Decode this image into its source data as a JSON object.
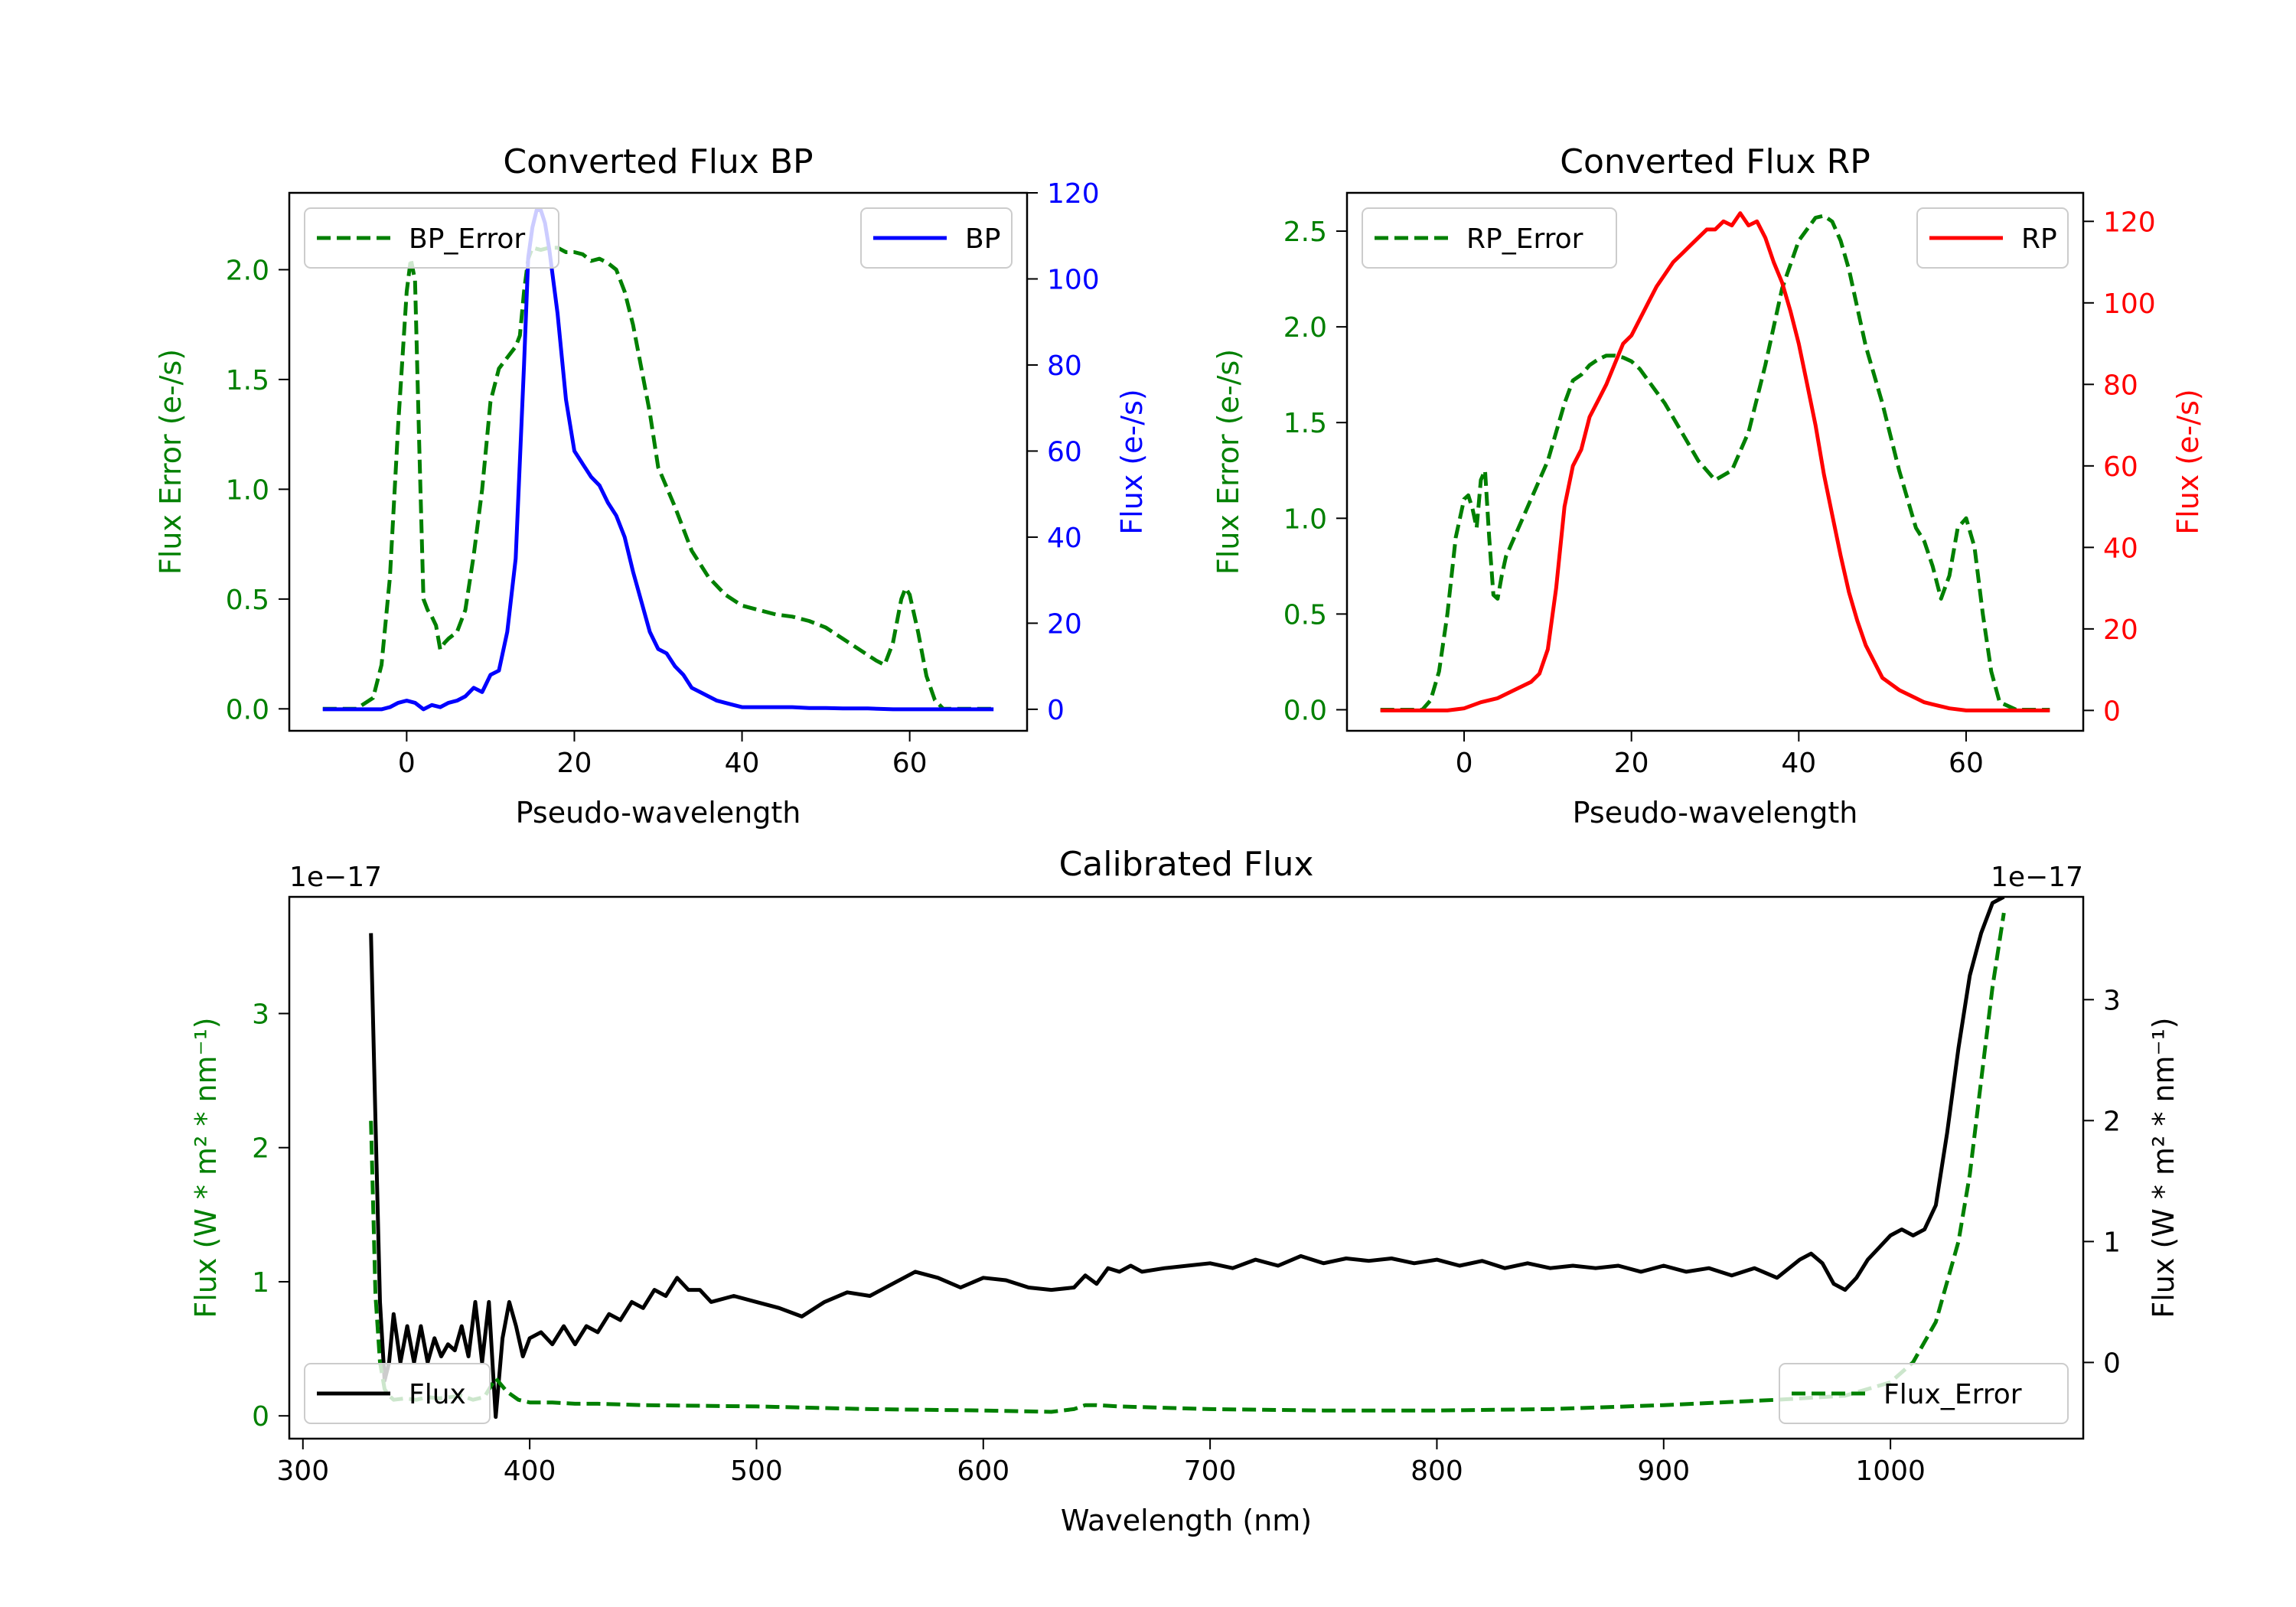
{
  "chart_data": [
    {
      "type": "line",
      "id": "bp",
      "title": "Converted Flux BP",
      "xlabel": "Pseudo-wavelength",
      "ylabel": "Flux Error (e-/s)",
      "ylabel_right": "Flux (e-/s)",
      "xlim": [
        -14,
        74
      ],
      "ylim": [
        -0.1,
        2.35
      ],
      "ylim_right": [
        -5,
        120
      ],
      "xticks": [
        0,
        20,
        40,
        60
      ],
      "yticks": [
        0.0,
        0.5,
        1.0,
        1.5,
        2.0
      ],
      "yticks_right": [
        0,
        20,
        40,
        60,
        80,
        100,
        120
      ],
      "colors": {
        "error": "#008000",
        "flux": "#0000ff",
        "left_axis": "#008000",
        "right_axis": "#0000ff"
      },
      "legend": {
        "error_label": "BP_Error",
        "flux_label": "BP",
        "error_position": "upper-left",
        "flux_position": "upper-right"
      },
      "series": [
        {
          "name": "BP_Error",
          "axis": "left",
          "style": "dashed",
          "x": [
            -10,
            -6,
            -4,
            -3,
            -2,
            -1,
            0,
            0.5,
            1,
            1.5,
            2,
            2.5,
            3,
            3.5,
            4,
            4.5,
            5,
            6,
            7,
            8,
            9,
            10,
            11,
            12,
            13,
            13.5,
            14,
            14.5,
            15,
            16,
            17,
            18,
            19,
            20,
            21,
            22,
            23,
            24,
            25,
            26,
            27,
            28,
            29,
            30,
            32,
            34,
            36,
            38,
            40,
            42,
            44,
            46,
            48,
            50,
            52,
            54,
            56,
            57,
            58,
            59,
            59.5,
            60,
            61,
            62,
            63,
            64,
            65,
            66,
            68,
            70
          ],
          "values": [
            0.0,
            0.0,
            0.05,
            0.2,
            0.6,
            1.3,
            1.9,
            2.05,
            1.95,
            1.2,
            0.5,
            0.45,
            0.42,
            0.38,
            0.27,
            0.3,
            0.32,
            0.35,
            0.45,
            0.7,
            1.0,
            1.4,
            1.55,
            1.6,
            1.65,
            1.7,
            1.9,
            2.05,
            2.1,
            2.09,
            2.1,
            2.1,
            2.08,
            2.08,
            2.07,
            2.04,
            2.05,
            2.03,
            2.0,
            1.9,
            1.75,
            1.55,
            1.35,
            1.1,
            0.92,
            0.72,
            0.6,
            0.52,
            0.47,
            0.45,
            0.43,
            0.42,
            0.4,
            0.37,
            0.32,
            0.27,
            0.22,
            0.2,
            0.3,
            0.5,
            0.55,
            0.52,
            0.35,
            0.15,
            0.04,
            0.0,
            0.0,
            0.0,
            0.0,
            0.0
          ]
        },
        {
          "name": "BP",
          "axis": "right",
          "style": "solid",
          "x": [
            -10,
            -6,
            -4,
            -3,
            -2,
            -1,
            0,
            1,
            2,
            3,
            4,
            5,
            6,
            7,
            8,
            9,
            10,
            11,
            12,
            13,
            14,
            14.5,
            15,
            15.5,
            16,
            16.5,
            17,
            18,
            19,
            20,
            21,
            22,
            23,
            24,
            25,
            26,
            27,
            28,
            29,
            30,
            31,
            32,
            33,
            34,
            35,
            36,
            37,
            38,
            39,
            40,
            42,
            44,
            46,
            48,
            50,
            52,
            55,
            58,
            60,
            62,
            65,
            70
          ],
          "values": [
            0,
            0,
            0,
            0,
            0.5,
            1.5,
            2,
            1.5,
            0,
            1,
            0.5,
            1.5,
            2,
            3,
            5,
            4,
            8,
            9,
            18,
            35,
            80,
            105,
            112,
            116,
            116,
            113,
            107,
            92,
            72,
            60,
            57,
            54,
            52,
            48,
            45,
            40,
            32,
            25,
            18,
            14,
            13,
            10,
            8,
            5,
            4,
            3,
            2,
            1.5,
            1,
            0.5,
            0.5,
            0.5,
            0.5,
            0.3,
            0.3,
            0.2,
            0.2,
            0,
            0,
            0,
            0,
            0
          ]
        }
      ]
    },
    {
      "type": "line",
      "id": "rp",
      "title": "Converted Flux RP",
      "xlabel": "Pseudo-wavelength",
      "ylabel": "Flux Error (e-/s)",
      "ylabel_right": "Flux (e-/s)",
      "xlim": [
        -14,
        74
      ],
      "ylim": [
        -0.11,
        2.7
      ],
      "ylim_right": [
        -5,
        127
      ],
      "xticks": [
        0,
        20,
        40,
        60
      ],
      "yticks": [
        0.0,
        0.5,
        1.0,
        1.5,
        2.0,
        2.5
      ],
      "yticks_right": [
        0,
        20,
        40,
        60,
        80,
        100,
        120
      ],
      "colors": {
        "error": "#008000",
        "flux": "#ff0000",
        "left_axis": "#008000",
        "right_axis": "#ff0000"
      },
      "legend": {
        "error_label": "RP_Error",
        "flux_label": "RP",
        "error_position": "upper-left",
        "flux_position": "upper-right"
      },
      "series": [
        {
          "name": "RP_Error",
          "axis": "left",
          "style": "dashed",
          "x": [
            -10,
            -5,
            -4,
            -3,
            -2,
            -1,
            0,
            0.5,
            1,
            1.5,
            2,
            2.5,
            3,
            3.5,
            4,
            4.5,
            5,
            6,
            7,
            8,
            9,
            10,
            11,
            12,
            13,
            14,
            15,
            16,
            17,
            18,
            19,
            20,
            21,
            22,
            24,
            26,
            28,
            30,
            32,
            34,
            36,
            38,
            40,
            42,
            43,
            44,
            45,
            46,
            47,
            48,
            50,
            52,
            54,
            55,
            56,
            57,
            58,
            59,
            60,
            61,
            62,
            63,
            64,
            66,
            68,
            70
          ],
          "values": [
            0.0,
            0.0,
            0.05,
            0.2,
            0.5,
            0.9,
            1.1,
            1.12,
            1.05,
            0.95,
            1.2,
            1.25,
            0.9,
            0.6,
            0.58,
            0.7,
            0.8,
            0.9,
            1.0,
            1.1,
            1.2,
            1.3,
            1.45,
            1.6,
            1.72,
            1.75,
            1.8,
            1.83,
            1.85,
            1.85,
            1.84,
            1.82,
            1.78,
            1.72,
            1.6,
            1.45,
            1.3,
            1.2,
            1.25,
            1.45,
            1.8,
            2.2,
            2.45,
            2.57,
            2.58,
            2.55,
            2.45,
            2.3,
            2.1,
            1.9,
            1.6,
            1.25,
            0.95,
            0.88,
            0.75,
            0.58,
            0.7,
            0.95,
            1.0,
            0.85,
            0.5,
            0.2,
            0.04,
            0.0,
            0.0,
            0.0
          ]
        },
        {
          "name": "RP",
          "axis": "right",
          "style": "solid",
          "x": [
            -10,
            -5,
            -2,
            0,
            2,
            4,
            6,
            8,
            9,
            10,
            11,
            12,
            13,
            14,
            15,
            16,
            17,
            18,
            19,
            20,
            21,
            22,
            23,
            24,
            25,
            26,
            27,
            28,
            29,
            30,
            31,
            32,
            33,
            34,
            35,
            36,
            37,
            38,
            39,
            40,
            41,
            42,
            43,
            44,
            45,
            46,
            47,
            48,
            49,
            50,
            52,
            54,
            55,
            56,
            58,
            60,
            62,
            65,
            70
          ],
          "values": [
            0,
            0,
            0,
            0.5,
            2,
            3,
            5,
            7,
            9,
            15,
            30,
            50,
            60,
            64,
            72,
            76,
            80,
            85,
            90,
            92,
            96,
            100,
            104,
            107,
            110,
            112,
            114,
            116,
            118,
            118,
            120,
            119,
            122,
            119,
            120,
            116,
            110,
            105,
            98,
            90,
            80,
            70,
            58,
            48,
            38,
            29,
            22,
            16,
            12,
            8,
            5,
            3,
            2,
            1.5,
            0.5,
            0,
            0,
            0,
            0
          ]
        }
      ]
    },
    {
      "type": "line",
      "id": "calib",
      "title": "Calibrated Flux",
      "xlabel": "Wavelength (nm)",
      "ylabel": "Flux (W * m² * nm⁻¹)",
      "ylabel_right": "Flux (W * m² * nm⁻¹)",
      "offset_text_left": "1e−17",
      "offset_text_right": "1e−17",
      "xlim": [
        294,
        1085
      ],
      "ylim": [
        -0.17,
        3.87
      ],
      "ylim_right": [
        -0.63,
        3.85
      ],
      "xticks": [
        300,
        400,
        500,
        600,
        700,
        800,
        900,
        1000
      ],
      "yticks": [
        0,
        1,
        2,
        3
      ],
      "yticks_right": [
        0,
        1,
        2,
        3
      ],
      "colors": {
        "error": "#008000",
        "flux": "#000000",
        "left_axis": "#008000",
        "right_axis": "#000000"
      },
      "legend": {
        "error_label": "Flux_Error",
        "flux_label": "Flux",
        "flux_position": "lower-left",
        "error_position": "lower-right"
      },
      "series": [
        {
          "name": "Flux_Error",
          "axis": "left",
          "style": "dashed",
          "x": [
            330,
            332,
            334,
            336,
            338,
            340,
            345,
            350,
            355,
            360,
            365,
            370,
            375,
            380,
            385,
            390,
            395,
            400,
            410,
            420,
            430,
            450,
            500,
            550,
            600,
            630,
            640,
            645,
            650,
            660,
            700,
            750,
            800,
            850,
            900,
            950,
            980,
            1000,
            1010,
            1020,
            1030,
            1035,
            1040,
            1045,
            1050
          ],
          "values": [
            2.2,
            0.9,
            0.4,
            0.2,
            0.15,
            0.12,
            0.13,
            0.12,
            0.14,
            0.13,
            0.14,
            0.15,
            0.12,
            0.14,
            0.28,
            0.18,
            0.12,
            0.1,
            0.1,
            0.09,
            0.09,
            0.08,
            0.07,
            0.05,
            0.04,
            0.03,
            0.05,
            0.08,
            0.08,
            0.07,
            0.05,
            0.04,
            0.04,
            0.05,
            0.08,
            0.12,
            0.15,
            0.25,
            0.4,
            0.7,
            1.3,
            1.8,
            2.5,
            3.2,
            3.75
          ]
        },
        {
          "name": "Flux",
          "axis": "right",
          "style": "solid",
          "x": [
            330,
            332,
            334,
            336,
            338,
            340,
            343,
            346,
            349,
            352,
            355,
            358,
            361,
            364,
            367,
            370,
            373,
            376,
            379,
            382,
            385,
            388,
            391,
            394,
            397,
            400,
            405,
            410,
            415,
            420,
            425,
            430,
            435,
            440,
            445,
            450,
            455,
            460,
            465,
            470,
            475,
            480,
            490,
            500,
            510,
            520,
            530,
            540,
            550,
            560,
            570,
            580,
            590,
            600,
            610,
            620,
            630,
            640,
            645,
            650,
            655,
            660,
            665,
            670,
            680,
            690,
            700,
            710,
            720,
            730,
            740,
            750,
            760,
            770,
            780,
            790,
            800,
            810,
            820,
            830,
            840,
            850,
            860,
            870,
            880,
            890,
            900,
            910,
            920,
            930,
            940,
            950,
            960,
            965,
            970,
            975,
            980,
            985,
            990,
            995,
            1000,
            1005,
            1010,
            1015,
            1020,
            1025,
            1030,
            1035,
            1040,
            1045,
            1050
          ],
          "values": [
            3.55,
            2.0,
            0.5,
            -0.15,
            0.0,
            0.4,
            0.0,
            0.3,
            0.0,
            0.3,
            0.0,
            0.2,
            0.05,
            0.15,
            0.1,
            0.3,
            0.05,
            0.5,
            0.0,
            0.5,
            -0.45,
            0.2,
            0.5,
            0.3,
            0.05,
            0.2,
            0.25,
            0.15,
            0.3,
            0.15,
            0.3,
            0.25,
            0.4,
            0.35,
            0.5,
            0.45,
            0.6,
            0.55,
            0.7,
            0.6,
            0.6,
            0.5,
            0.55,
            0.5,
            0.45,
            0.38,
            0.5,
            0.58,
            0.55,
            0.65,
            0.75,
            0.7,
            0.62,
            0.7,
            0.68,
            0.62,
            0.6,
            0.62,
            0.72,
            0.65,
            0.78,
            0.75,
            0.8,
            0.75,
            0.78,
            0.8,
            0.82,
            0.78,
            0.85,
            0.8,
            0.88,
            0.82,
            0.86,
            0.84,
            0.86,
            0.82,
            0.85,
            0.8,
            0.84,
            0.78,
            0.82,
            0.78,
            0.8,
            0.78,
            0.8,
            0.75,
            0.8,
            0.75,
            0.78,
            0.72,
            0.78,
            0.7,
            0.85,
            0.9,
            0.82,
            0.65,
            0.6,
            0.7,
            0.85,
            0.95,
            1.05,
            1.1,
            1.05,
            1.1,
            1.3,
            1.9,
            2.6,
            3.2,
            3.55,
            3.8,
            3.85
          ]
        }
      ]
    }
  ]
}
